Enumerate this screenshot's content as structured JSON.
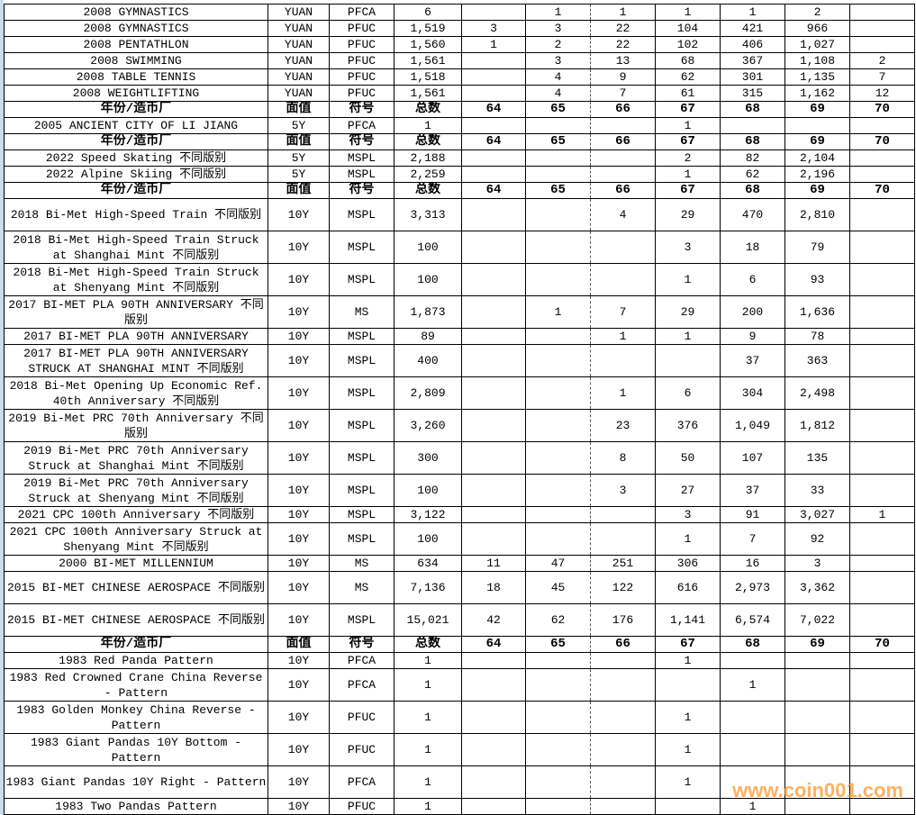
{
  "watermark": "www.coin001.com",
  "accent_watermark_color": "#ff9628",
  "rows": [
    {
      "type": "data",
      "cells": [
        "2008 GYMNASTICS",
        "YUAN",
        "PFCA",
        "6",
        "",
        "1",
        "1",
        "1",
        "1",
        "2",
        ""
      ]
    },
    {
      "type": "data",
      "cells": [
        "2008 GYMNASTICS",
        "YUAN",
        "PFUC",
        "1,519",
        "3",
        "3",
        "22",
        "104",
        "421",
        "966",
        ""
      ]
    },
    {
      "type": "data",
      "cells": [
        "2008 PENTATHLON",
        "YUAN",
        "PFUC",
        "1,560",
        "1",
        "2",
        "22",
        "102",
        "406",
        "1,027",
        ""
      ]
    },
    {
      "type": "data",
      "cells": [
        "2008 SWIMMING",
        "YUAN",
        "PFUC",
        "1,561",
        "",
        "3",
        "13",
        "68",
        "367",
        "1,108",
        "2"
      ]
    },
    {
      "type": "data",
      "cells": [
        "2008 TABLE TENNIS",
        "YUAN",
        "PFUC",
        "1,518",
        "",
        "4",
        "9",
        "62",
        "301",
        "1,135",
        "7"
      ]
    },
    {
      "type": "data",
      "cells": [
        "2008 WEIGHTLIFTING",
        "YUAN",
        "PFUC",
        "1,561",
        "",
        "4",
        "7",
        "61",
        "315",
        "1,162",
        "12"
      ]
    },
    {
      "type": "header",
      "cells": [
        "年份/造币厂",
        "面值",
        "符号",
        "总数",
        "64",
        "65",
        "66",
        "67",
        "68",
        "69",
        "70"
      ]
    },
    {
      "type": "data",
      "cells": [
        "2005 ANCIENT CITY OF LI JIANG",
        "5Y",
        "PFCA",
        "1",
        "",
        "",
        "",
        "1",
        "",
        "",
        ""
      ]
    },
    {
      "type": "header",
      "cells": [
        "年份/造币厂",
        "面值",
        "符号",
        "总数",
        "64",
        "65",
        "66",
        "67",
        "68",
        "69",
        "70"
      ]
    },
    {
      "type": "data",
      "dashed": true,
      "cells": [
        "2022 Speed Skating 不同版别",
        "5Y",
        "MSPL",
        "2,188",
        "",
        "",
        "",
        "2",
        "82",
        "2,104",
        ""
      ]
    },
    {
      "type": "data",
      "cells": [
        "2022 Alpine Skiing 不同版别",
        "5Y",
        "MSPL",
        "2,259",
        "",
        "",
        "",
        "1",
        "62",
        "2,196",
        ""
      ]
    },
    {
      "type": "header",
      "cells": [
        "年份/造币厂",
        "面值",
        "符号",
        "总数",
        "64",
        "65",
        "66",
        "67",
        "68",
        "69",
        "70"
      ]
    },
    {
      "type": "data",
      "tall": true,
      "cells": [
        "2018 Bi-Met High-Speed Train 不同版别",
        "10Y",
        "MSPL",
        "3,313",
        "",
        "",
        "4",
        "29",
        "470",
        "2,810",
        ""
      ]
    },
    {
      "type": "data",
      "tall": true,
      "cells": [
        "2018 Bi-Met High-Speed Train Struck at Shanghai Mint 不同版别",
        "10Y",
        "MSPL",
        "100",
        "",
        "",
        "",
        "3",
        "18",
        "79",
        ""
      ]
    },
    {
      "type": "data",
      "tall": true,
      "cells": [
        "2018 Bi-Met High-Speed Train Struck at Shenyang Mint 不同版别",
        "10Y",
        "MSPL",
        "100",
        "",
        "",
        "",
        "1",
        "6",
        "93",
        ""
      ]
    },
    {
      "type": "data",
      "tall": true,
      "cells": [
        "2017 BI-MET PLA 90TH ANNIVERSARY 不同版别",
        "10Y",
        "MS",
        "1,873",
        "",
        "1",
        "7",
        "29",
        "200",
        "1,636",
        ""
      ]
    },
    {
      "type": "data",
      "cells": [
        "2017 BI-MET PLA 90TH ANNIVERSARY",
        "10Y",
        "MSPL",
        "89",
        "",
        "",
        "1",
        "1",
        "9",
        "78",
        ""
      ]
    },
    {
      "type": "data",
      "tall": true,
      "cells": [
        "2017 BI-MET PLA 90TH ANNIVERSARY STRUCK AT SHANGHAI MINT 不同版别",
        "10Y",
        "MSPL",
        "400",
        "",
        "",
        "",
        "",
        "37",
        "363",
        ""
      ]
    },
    {
      "type": "data",
      "tall": true,
      "cells": [
        "2018 Bi-Met Opening Up Economic Ref. 40th Anniversary 不同版别",
        "10Y",
        "MSPL",
        "2,809",
        "",
        "",
        "1",
        "6",
        "304",
        "2,498",
        ""
      ]
    },
    {
      "type": "data",
      "tall": true,
      "cells": [
        "2019 Bi-Met PRC 70th Anniversary 不同版别",
        "10Y",
        "MSPL",
        "3,260",
        "",
        "",
        "23",
        "376",
        "1,049",
        "1,812",
        ""
      ]
    },
    {
      "type": "data",
      "tall": true,
      "cells": [
        "2019 Bi-Met PRC 70th Anniversary Struck at Shanghai Mint 不同版别",
        "10Y",
        "MSPL",
        "300",
        "",
        "",
        "8",
        "50",
        "107",
        "135",
        ""
      ]
    },
    {
      "type": "data",
      "tall": true,
      "cells": [
        "2019 Bi-Met PRC 70th Anniversary Struck at Shenyang Mint 不同版别",
        "10Y",
        "MSPL",
        "100",
        "",
        "",
        "3",
        "27",
        "37",
        "33",
        ""
      ]
    },
    {
      "type": "data",
      "cells": [
        "2021 CPC 100th Anniversary 不同版别",
        "10Y",
        "MSPL",
        "3,122",
        "",
        "",
        "",
        "3",
        "91",
        "3,027",
        "1"
      ]
    },
    {
      "type": "data",
      "tall": true,
      "cells": [
        "2021 CPC 100th Anniversary Struck at Shenyang Mint 不同版别",
        "10Y",
        "MSPL",
        "100",
        "",
        "",
        "",
        "1",
        "7",
        "92",
        ""
      ]
    },
    {
      "type": "data",
      "cells": [
        "2000 BI-MET MILLENNIUM",
        "10Y",
        "MS",
        "634",
        "11",
        "47",
        "251",
        "306",
        "16",
        "3",
        ""
      ]
    },
    {
      "type": "data",
      "tall": true,
      "cells": [
        "2015 BI-MET CHINESE AEROSPACE 不同版别",
        "10Y",
        "MS",
        "7,136",
        "18",
        "45",
        "122",
        "616",
        "2,973",
        "3,362",
        ""
      ]
    },
    {
      "type": "data",
      "tall": true,
      "cells": [
        "2015 BI-MET CHINESE AEROSPACE 不同版别",
        "10Y",
        "MSPL",
        "15,021",
        "42",
        "62",
        "176",
        "1,141",
        "6,574",
        "7,022",
        ""
      ]
    },
    {
      "type": "header",
      "cells": [
        "年份/造币厂",
        "面值",
        "符号",
        "总数",
        "64",
        "65",
        "66",
        "67",
        "68",
        "69",
        "70"
      ]
    },
    {
      "type": "data",
      "cells": [
        "1983 Red Panda Pattern",
        "10Y",
        "PFCA",
        "1",
        "",
        "",
        "",
        "1",
        "",
        "",
        ""
      ]
    },
    {
      "type": "data",
      "tall": true,
      "cells": [
        "1983 Red Crowned Crane China Reverse - Pattern",
        "10Y",
        "PFCA",
        "1",
        "",
        "",
        "",
        "",
        "1",
        "",
        ""
      ]
    },
    {
      "type": "data",
      "tall": true,
      "cells": [
        "1983 Golden Monkey China Reverse - Pattern",
        "10Y",
        "PFUC",
        "1",
        "",
        "",
        "",
        "1",
        "",
        "",
        ""
      ]
    },
    {
      "type": "data",
      "tall": true,
      "cells": [
        "1983 Giant Pandas 10Y Bottom - Pattern",
        "10Y",
        "PFUC",
        "1",
        "",
        "",
        "",
        "1",
        "",
        "",
        ""
      ]
    },
    {
      "type": "data",
      "tall": true,
      "cells": [
        "1983 Giant Pandas 10Y Right - Pattern",
        "10Y",
        "PFCA",
        "1",
        "",
        "",
        "",
        "1",
        "",
        "",
        ""
      ]
    },
    {
      "type": "data",
      "cells": [
        "1983 Two Pandas Pattern",
        "10Y",
        "PFUC",
        "1",
        "",
        "",
        "",
        "",
        "1",
        "",
        ""
      ]
    }
  ]
}
